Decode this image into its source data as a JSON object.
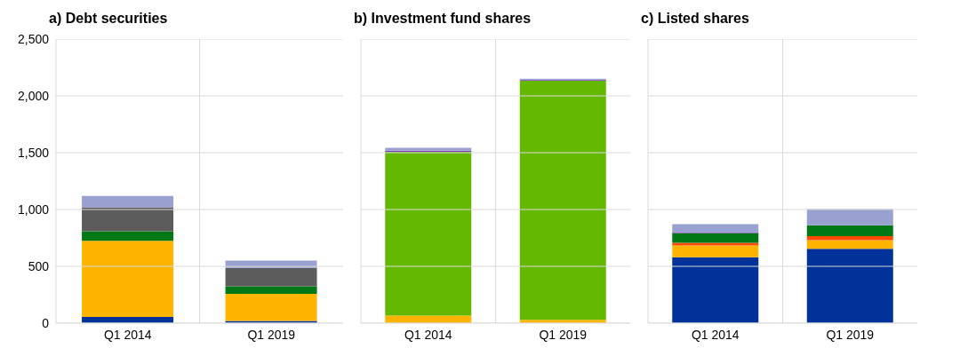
{
  "chart_data": [
    {
      "type": "bar",
      "title": "a) Debt securities",
      "categories": [
        "Q1 2014",
        "Q1 2019"
      ],
      "stacked": true,
      "grid": true,
      "legend": false,
      "ylim": [
        0,
        2500
      ],
      "yticks": [
        0,
        {
          "value": 500,
          "label": "500"
        },
        {
          "value": 1000,
          "label": "1,000"
        },
        {
          "value": 1500,
          "label": "1,500"
        },
        {
          "value": 2000,
          "label": "2,000"
        },
        {
          "value": 2500,
          "label": "2,500"
        }
      ],
      "series": [
        {
          "color": "#003299",
          "values": [
            55,
            20
          ]
        },
        {
          "color": "#ffb400",
          "values": [
            670,
            238
          ]
        },
        {
          "color": "#007816",
          "values": [
            83,
            67
          ]
        },
        {
          "color": "#5c5c5c",
          "values": [
            212,
            161
          ]
        },
        {
          "color": "#98a1d0",
          "values": [
            100,
            64
          ]
        }
      ]
    },
    {
      "type": "bar",
      "title": "b) Investment fund shares",
      "categories": [
        "Q1 2014",
        "Q1 2019"
      ],
      "stacked": true,
      "grid": true,
      "legend": false,
      "tick_labels": "x",
      "ylim": [
        0,
        2500
      ],
      "yticks": [
        0,
        500,
        1000,
        1500,
        2000,
        2500
      ],
      "series": [
        {
          "color": "#ffb400",
          "values": [
            66,
            30
          ]
        },
        {
          "color": "#65b800",
          "values": [
            1442,
            2105
          ]
        },
        {
          "color": "#8139c2",
          "values": [
            10,
            5
          ]
        },
        {
          "color": "#98a1d0",
          "values": [
            25,
            10
          ]
        }
      ]
    },
    {
      "type": "bar",
      "title": "c) Listed shares",
      "categories": [
        "Q1 2014",
        "Q1 2019"
      ],
      "stacked": true,
      "grid": true,
      "legend": false,
      "tick_labels": "x",
      "ylim": [
        0,
        2500
      ],
      "yticks": [
        0,
        500,
        1000,
        1500,
        2000,
        2500
      ],
      "series": [
        {
          "color": "#003299",
          "values": [
            580,
            654
          ]
        },
        {
          "color": "#ffb400",
          "values": [
            104,
            76
          ]
        },
        {
          "color": "#ff4b00",
          "values": [
            23,
            35
          ]
        },
        {
          "color": "#007816",
          "values": [
            86,
            96
          ]
        },
        {
          "color": "#8139c2",
          "values": [
            8,
            0
          ]
        },
        {
          "color": "#98a1d0",
          "values": [
            71,
            142
          ]
        }
      ]
    }
  ]
}
